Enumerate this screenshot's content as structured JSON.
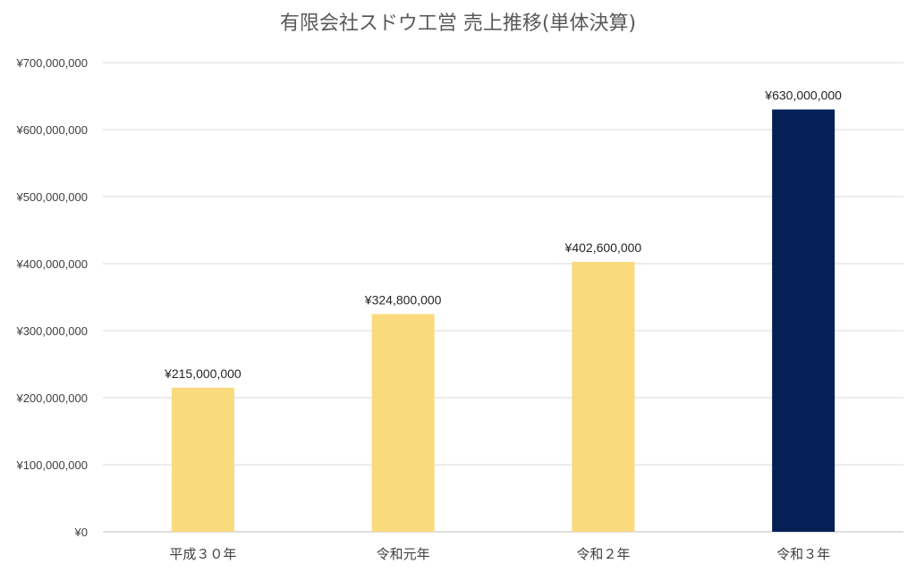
{
  "chart_data": {
    "type": "bar",
    "title": "有限会社スドウ工営 売上推移(単体決算)",
    "xlabel": "",
    "ylabel": "",
    "categories": [
      "平成３０年",
      "令和元年",
      "令和２年",
      "令和３年"
    ],
    "values": [
      215000000,
      324800000,
      402600000,
      630000000
    ],
    "value_labels": [
      "¥215,000,000",
      "¥324,800,000",
      "¥402,600,000",
      "¥630,000,000"
    ],
    "bar_colors": [
      "#f9da7c",
      "#f9da7c",
      "#f9da7c",
      "#052057"
    ],
    "ylim": [
      0,
      700000000
    ],
    "y_ticks": [
      0,
      100000000,
      200000000,
      300000000,
      400000000,
      500000000,
      600000000,
      700000000
    ],
    "y_tick_labels": [
      "¥0",
      "¥100,000,000",
      "¥200,000,000",
      "¥300,000,000",
      "¥400,000,000",
      "¥500,000,000",
      "¥600,000,000",
      "¥700,000,000"
    ],
    "grid": true,
    "legend": "none"
  }
}
